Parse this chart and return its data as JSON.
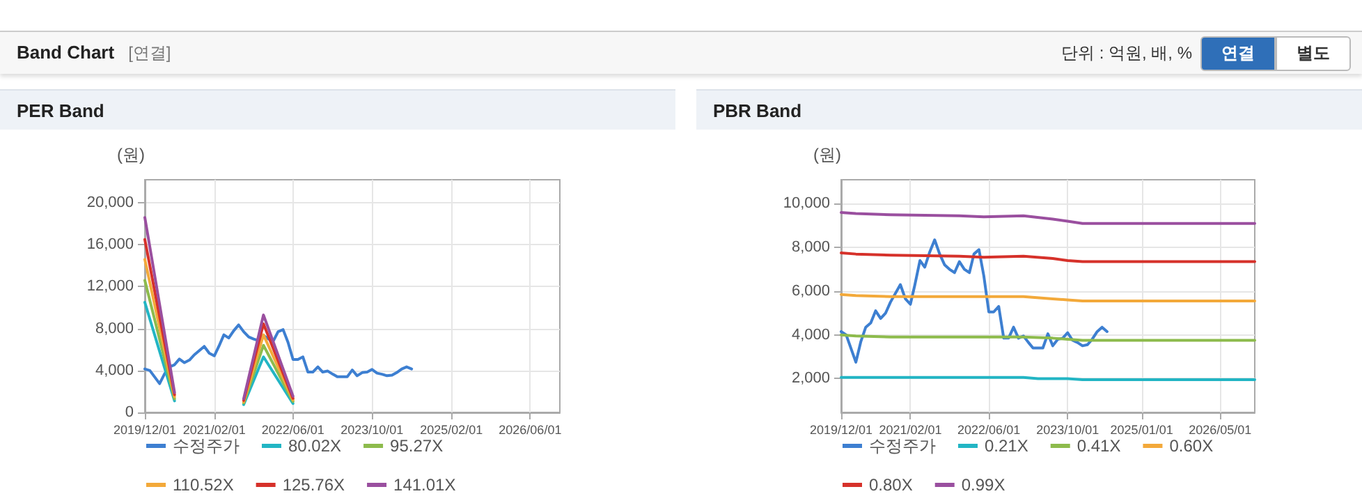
{
  "chart_data": [
    {
      "type": "other",
      "title": "Band Chart",
      "subtitle": "[연결]",
      "annotations": [
        "단위 : 억원, 배, %",
        "연결",
        "별도"
      ]
    },
    {
      "type": "line",
      "title": "PER Band",
      "ylabel": "(원)",
      "legend": "bottom",
      "grid": true,
      "marker": "none",
      "line_style": "solid",
      "xlim": [
        "2019-12-01",
        "2026-12-01"
      ],
      "xticks": [
        {
          "value": "2019-12-01",
          "label": "2019/12/01"
        },
        {
          "value": "2021-02-01",
          "label": "2021/02/01"
        },
        {
          "value": "2022-06-01",
          "label": "2022/06/01"
        },
        {
          "value": "2023-10-01",
          "label": "2023/10/01"
        },
        {
          "value": "2025-02-01",
          "label": "2025/02/01"
        },
        {
          "value": "2026-06-01",
          "label": "2026/06/01"
        }
      ],
      "ylim": [
        0,
        22200
      ],
      "yticks": [
        0,
        {
          "value": 4000,
          "label": "4,000"
        },
        {
          "value": 8000,
          "label": "8,000"
        },
        {
          "value": 12000,
          "label": "12,000"
        },
        {
          "value": 16000,
          "label": "16,000"
        },
        {
          "value": 20000,
          "label": "20,000"
        }
      ],
      "series": [
        {
          "name": "수정주가",
          "color": "#3d7fd1",
          "x": [
            "2019-12-01",
            "2020-01-01",
            "2020-03-01",
            "2020-04-01",
            "2020-05-01",
            "2020-06-01",
            "2020-07-01",
            "2020-08-01",
            "2020-09-01",
            "2020-10-01",
            "2020-12-01",
            "2021-01-01",
            "2021-02-01",
            "2021-03-01",
            "2021-04-01",
            "2021-05-01",
            "2021-06-01",
            "2021-07-01",
            "2021-08-01",
            "2021-09-01",
            "2021-10-01",
            "2021-11-01",
            "2021-12-01",
            "2022-01-01",
            "2022-02-01",
            "2022-03-01",
            "2022-04-01",
            "2022-05-01",
            "2022-06-01",
            "2022-07-01",
            "2022-08-01",
            "2022-09-01",
            "2022-10-01",
            "2022-11-01",
            "2022-12-01",
            "2023-01-01",
            "2023-02-01",
            "2023-03-01",
            "2023-04-01",
            "2023-05-01",
            "2023-06-01",
            "2023-07-01",
            "2023-08-01",
            "2023-09-01",
            "2023-10-01",
            "2023-11-01",
            "2023-12-01",
            "2024-01-01",
            "2024-02-01",
            "2024-03-01",
            "2024-04-01",
            "2024-05-01",
            "2024-06-01"
          ],
          "values": [
            4150,
            4000,
            2750,
            3700,
            4350,
            4550,
            5100,
            4750,
            5000,
            5500,
            6300,
            5650,
            5400,
            6300,
            7400,
            7100,
            7800,
            8350,
            7700,
            7200,
            7000,
            6850,
            7350,
            7000,
            6850,
            7700,
            7900,
            6700,
            5050,
            5050,
            5300,
            3850,
            3850,
            4350,
            3850,
            3950,
            3650,
            3400,
            3400,
            3400,
            4050,
            3500,
            3800,
            3850,
            4100,
            3750,
            3650,
            3500,
            3550,
            3800,
            4150,
            4350,
            4150
          ]
        },
        {
          "name": "80.02X",
          "color": "#22b5c4",
          "x": [
            "2019-12-01",
            "2020-06-01",
            "2020-07-01",
            "2021-08-01",
            "2021-12-01",
            "2022-06-01"
          ],
          "values": [
            10500,
            1100,
            null,
            750,
            5300,
            850
          ]
        },
        {
          "name": "95.27X",
          "color": "#8dbb4c",
          "x": [
            "2019-12-01",
            "2020-06-01",
            "2020-07-01",
            "2021-08-01",
            "2021-12-01",
            "2022-06-01"
          ],
          "values": [
            12600,
            1300,
            null,
            900,
            6400,
            1050
          ]
        },
        {
          "name": "110.52X",
          "color": "#f3a93a",
          "x": [
            "2019-12-01",
            "2020-06-01",
            "2020-07-01",
            "2021-08-01",
            "2021-12-01",
            "2022-06-01"
          ],
          "values": [
            14600,
            1500,
            null,
            1000,
            7400,
            1200
          ]
        },
        {
          "name": "125.76X",
          "color": "#d6312a",
          "x": [
            "2019-12-01",
            "2020-06-01",
            "2020-07-01",
            "2021-08-01",
            "2021-12-01",
            "2022-06-01"
          ],
          "values": [
            16500,
            1700,
            null,
            1150,
            8450,
            1350
          ]
        },
        {
          "name": "141.01X",
          "color": "#9a4f9f",
          "x": [
            "2019-12-01",
            "2020-06-01",
            "2020-07-01",
            "2021-08-01",
            "2021-12-01",
            "2022-06-01"
          ],
          "values": [
            18600,
            1900,
            null,
            1300,
            9300,
            1550
          ]
        }
      ]
    },
    {
      "type": "line",
      "title": "PBR Band",
      "ylabel": "(원)",
      "legend": "bottom",
      "grid": true,
      "marker": "none",
      "line_style": "solid",
      "xlim": [
        "2019-12-01",
        "2026-12-01"
      ],
      "xticks": [
        {
          "value": "2019-12-01",
          "label": "2019/12/01"
        },
        {
          "value": "2021-02-01",
          "label": "2021/02/01"
        },
        {
          "value": "2022-06-01",
          "label": "2022/06/01"
        },
        {
          "value": "2023-10-01",
          "label": "2023/10/01"
        },
        {
          "value": "2025-01-01",
          "label": "2025/01/01"
        },
        {
          "value": "2026-05-01",
          "label": "2026/05/01"
        }
      ],
      "ylim": [
        450,
        11100
      ],
      "yticks": [
        {
          "value": 2000,
          "label": "2,000"
        },
        {
          "value": 4000,
          "label": "4,000"
        },
        {
          "value": 6000,
          "label": "6,000"
        },
        {
          "value": 8000,
          "label": "8,000"
        },
        {
          "value": 10000,
          "label": "10,000"
        }
      ],
      "series": [
        {
          "name": "수정주가",
          "color": "#3d7fd1",
          "x": [
            "2019-12-01",
            "2020-01-01",
            "2020-03-01",
            "2020-04-01",
            "2020-05-01",
            "2020-06-01",
            "2020-07-01",
            "2020-08-01",
            "2020-09-01",
            "2020-10-01",
            "2020-12-01",
            "2021-01-01",
            "2021-02-01",
            "2021-03-01",
            "2021-04-01",
            "2021-05-01",
            "2021-06-01",
            "2021-07-01",
            "2021-08-01",
            "2021-09-01",
            "2021-10-01",
            "2021-11-01",
            "2021-12-01",
            "2022-01-01",
            "2022-02-01",
            "2022-03-01",
            "2022-04-01",
            "2022-05-01",
            "2022-06-01",
            "2022-07-01",
            "2022-08-01",
            "2022-09-01",
            "2022-10-01",
            "2022-11-01",
            "2022-12-01",
            "2023-01-01",
            "2023-02-01",
            "2023-03-01",
            "2023-04-01",
            "2023-05-01",
            "2023-06-01",
            "2023-07-01",
            "2023-08-01",
            "2023-09-01",
            "2023-10-01",
            "2023-11-01",
            "2023-12-01",
            "2024-01-01",
            "2024-02-01",
            "2024-03-01",
            "2024-04-01",
            "2024-05-01",
            "2024-06-01"
          ],
          "values": [
            4150,
            4000,
            2750,
            3700,
            4350,
            4550,
            5100,
            4750,
            5000,
            5500,
            6300,
            5650,
            5400,
            6300,
            7400,
            7100,
            7800,
            8350,
            7700,
            7200,
            7000,
            6850,
            7350,
            7000,
            6850,
            7700,
            7900,
            6700,
            5050,
            5050,
            5300,
            3850,
            3850,
            4350,
            3850,
            3950,
            3650,
            3400,
            3400,
            3400,
            4050,
            3500,
            3800,
            3850,
            4100,
            3750,
            3650,
            3500,
            3550,
            3800,
            4150,
            4350,
            4150
          ]
        },
        {
          "name": "0.21X",
          "color": "#22b5c4",
          "x": [
            "2019-12-01",
            "2020-03-01",
            "2020-10-01",
            "2021-12-01",
            "2022-05-01",
            "2023-01-01",
            "2023-04-01",
            "2023-10-01",
            "2024-01-01",
            "2026-12-01"
          ],
          "values": [
            2050,
            2050,
            2050,
            2050,
            2050,
            2050,
            2000,
            2000,
            1950,
            1950
          ]
        },
        {
          "name": "0.41X",
          "color": "#8dbb4c",
          "x": [
            "2019-12-01",
            "2020-03-01",
            "2020-10-01",
            "2021-12-01",
            "2022-05-01",
            "2023-01-01",
            "2023-07-01",
            "2023-10-01",
            "2024-01-01",
            "2026-12-01"
          ],
          "values": [
            4000,
            3950,
            3900,
            3900,
            3900,
            3900,
            3850,
            3800,
            3750,
            3750
          ]
        },
        {
          "name": "0.60X",
          "color": "#f3a93a",
          "x": [
            "2019-12-01",
            "2020-03-01",
            "2020-10-01",
            "2021-12-01",
            "2022-05-01",
            "2023-01-01",
            "2023-07-01",
            "2023-10-01",
            "2024-01-01",
            "2026-12-01"
          ],
          "values": [
            5850,
            5800,
            5750,
            5750,
            5750,
            5750,
            5650,
            5600,
            5550,
            5550
          ]
        },
        {
          "name": "0.80X",
          "color": "#d6312a",
          "x": [
            "2019-12-01",
            "2020-03-01",
            "2020-10-01",
            "2021-12-01",
            "2022-05-01",
            "2023-01-01",
            "2023-07-01",
            "2023-10-01",
            "2024-01-01",
            "2026-12-01"
          ],
          "values": [
            7750,
            7700,
            7650,
            7600,
            7550,
            7600,
            7500,
            7400,
            7350,
            7350
          ]
        },
        {
          "name": "0.99X",
          "color": "#9a4f9f",
          "x": [
            "2019-12-01",
            "2020-03-01",
            "2020-10-01",
            "2021-12-01",
            "2022-05-01",
            "2023-01-01",
            "2023-07-01",
            "2023-10-01",
            "2024-01-01",
            "2026-12-01"
          ],
          "values": [
            9600,
            9550,
            9500,
            9450,
            9400,
            9450,
            9300,
            9200,
            9100,
            9100
          ]
        }
      ]
    }
  ]
}
